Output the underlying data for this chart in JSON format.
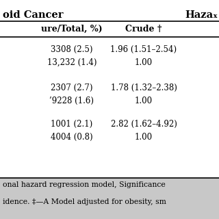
{
  "title_left": "oid Cancer",
  "title_right": "Hazaₓ",
  "col_headers": [
    "ure/Total, %)",
    "Crude †"
  ],
  "rows": [
    {
      "col1": "3308 (2.5)",
      "col2": "1.96 (1.51–2.54)"
    },
    {
      "col1": "13,232 (1.4)",
      "col2": "1.00"
    },
    {
      "col1": "",
      "col2": ""
    },
    {
      "col1": "2307 (2.7)",
      "col2": "1.78 (1.32–2.38)"
    },
    {
      "col1": "’9228 (1.6)",
      "col2": "1.00"
    },
    {
      "col1": "",
      "col2": ""
    },
    {
      "col1": "1001 (2.1)",
      "col2": "2.82 (1.62–4.92)"
    },
    {
      "col1": "4004 (0.8)",
      "col2": "1.00"
    }
  ],
  "footer_lines": [
    "onal hazard regression model, Significance",
    "idence. ‡—A Model adjusted for obesity, sm"
  ],
  "bg_color": "#ffffff",
  "text_color": "#000000",
  "footer_bg": "#c8c8c8",
  "font_size": 8.5,
  "header_font_size": 9.0,
  "title_font_size": 10.5,
  "footer_font_size": 7.8
}
